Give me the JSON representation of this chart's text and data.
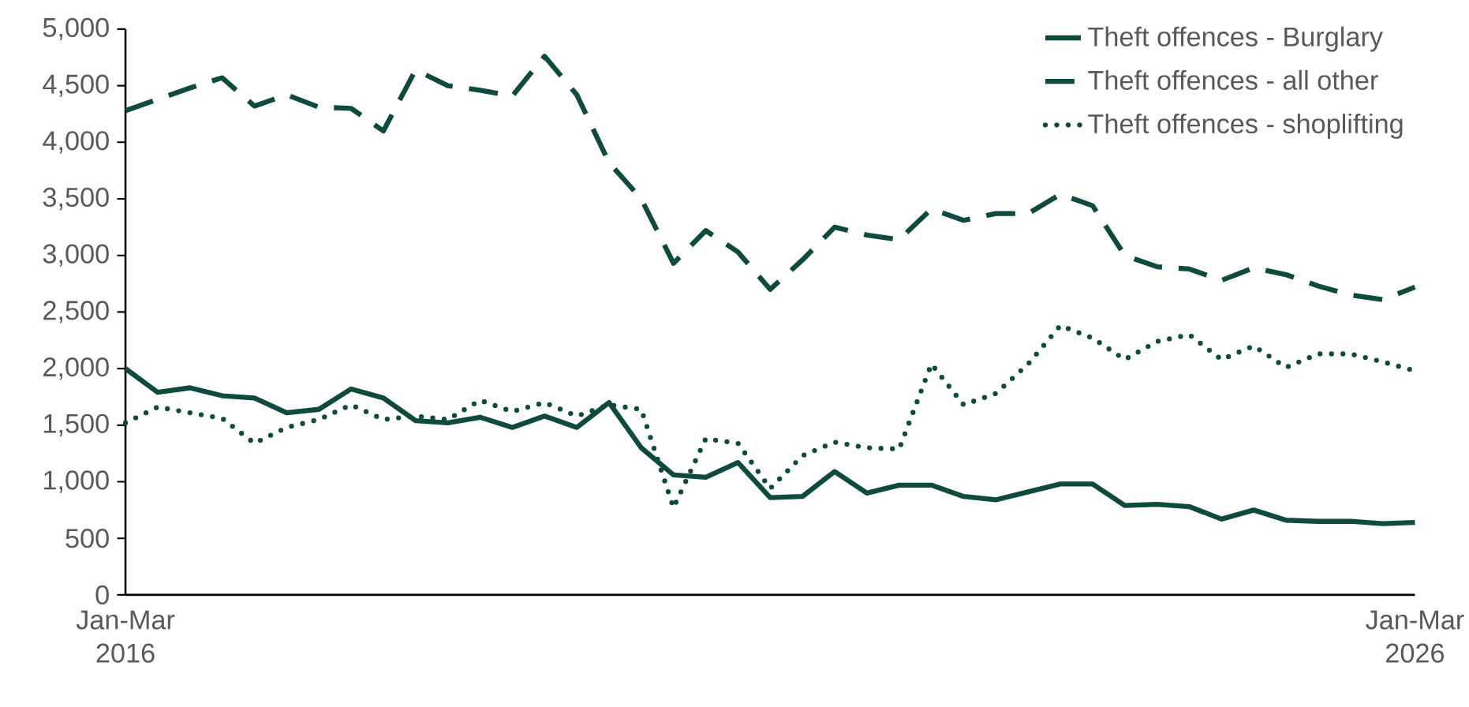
{
  "chart_data": {
    "type": "line",
    "categories": [
      "Jan-Mar 2016",
      null,
      null,
      null,
      null,
      null,
      null,
      null,
      null,
      null,
      null,
      null,
      null,
      null,
      null,
      null,
      null,
      null,
      null,
      null,
      null,
      null,
      null,
      null,
      null,
      null,
      null,
      null,
      null,
      null,
      null,
      null,
      null,
      null,
      null,
      null,
      null,
      null,
      null,
      null,
      "Jan-Mar 2026"
    ],
    "series": [
      {
        "name": "Theft offences - Burglary",
        "color": "#0e4a3e",
        "line_style": "solid",
        "values": [
          2000,
          1790,
          1830,
          1760,
          1740,
          1610,
          1640,
          1820,
          1740,
          1540,
          1520,
          1570,
          1480,
          1580,
          1480,
          1700,
          1300,
          1060,
          1040,
          1170,
          860,
          870,
          1090,
          900,
          970,
          970,
          870,
          840,
          910,
          980,
          980,
          790,
          800,
          780,
          670,
          750,
          660,
          650,
          650,
          630,
          640
        ]
      },
      {
        "name": "Theft offences - all other",
        "color": "#0e4a3e",
        "line_style": "dashed",
        "values": [
          4280,
          4380,
          4480,
          4570,
          4320,
          4420,
          4310,
          4300,
          4100,
          4640,
          4500,
          4460,
          4410,
          4760,
          4420,
          3820,
          3500,
          2930,
          3220,
          3030,
          2700,
          2960,
          3250,
          3180,
          3140,
          3410,
          3310,
          3370,
          3370,
          3540,
          3440,
          3000,
          2900,
          2880,
          2780,
          2890,
          2830,
          2730,
          2650,
          2610,
          2720
        ]
      },
      {
        "name": "Theft offences - shoplifting",
        "color": "#0e4a3e",
        "line_style": "dotted",
        "values": [
          1520,
          1660,
          1610,
          1560,
          1340,
          1480,
          1550,
          1680,
          1550,
          1580,
          1550,
          1720,
          1620,
          1700,
          1580,
          1680,
          1640,
          770,
          1380,
          1340,
          940,
          1230,
          1350,
          1300,
          1290,
          2040,
          1680,
          1780,
          2040,
          2380,
          2270,
          2080,
          2240,
          2300,
          2080,
          2200,
          2010,
          2130,
          2130,
          2060,
          1980
        ]
      }
    ],
    "ylim": [
      0,
      5000
    ],
    "yticks": [
      0,
      500,
      {
        "value": 1000,
        "label": "1,000"
      },
      {
        "value": 1500,
        "label": "1,500"
      },
      {
        "value": 2000,
        "label": "2,000"
      },
      {
        "value": 2500,
        "label": "2,500"
      },
      {
        "value": 3000,
        "label": "3,000"
      },
      {
        "value": 3500,
        "label": "3,500"
      },
      {
        "value": 4000,
        "label": "4,000"
      },
      {
        "value": 4500,
        "label": "4,500"
      },
      {
        "value": 5000,
        "label": "5,000"
      }
    ],
    "grid": false,
    "legend": "top right",
    "marker": "none"
  }
}
